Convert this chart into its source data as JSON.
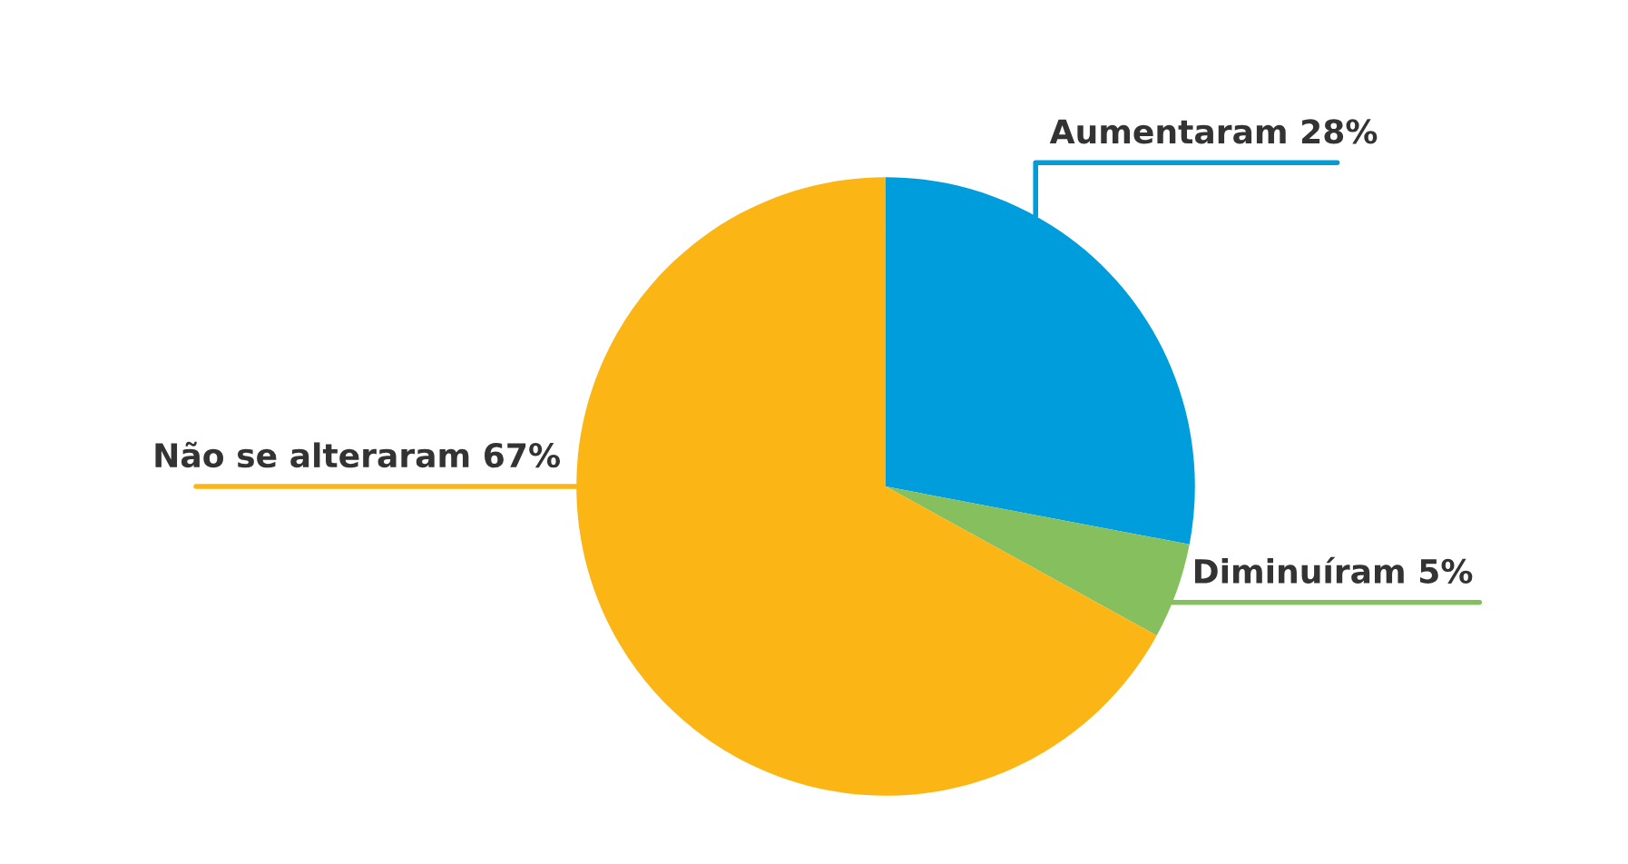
{
  "chart_data": {
    "type": "pie",
    "categories": [
      "Aumentaram",
      "Diminuíram",
      "Não se alteraram"
    ],
    "values": [
      28,
      5,
      67
    ],
    "value_labels": [
      "28%",
      "5%",
      "67%"
    ],
    "colors": [
      "#009ddc",
      "#86bf5e",
      "#fbb615"
    ]
  }
}
